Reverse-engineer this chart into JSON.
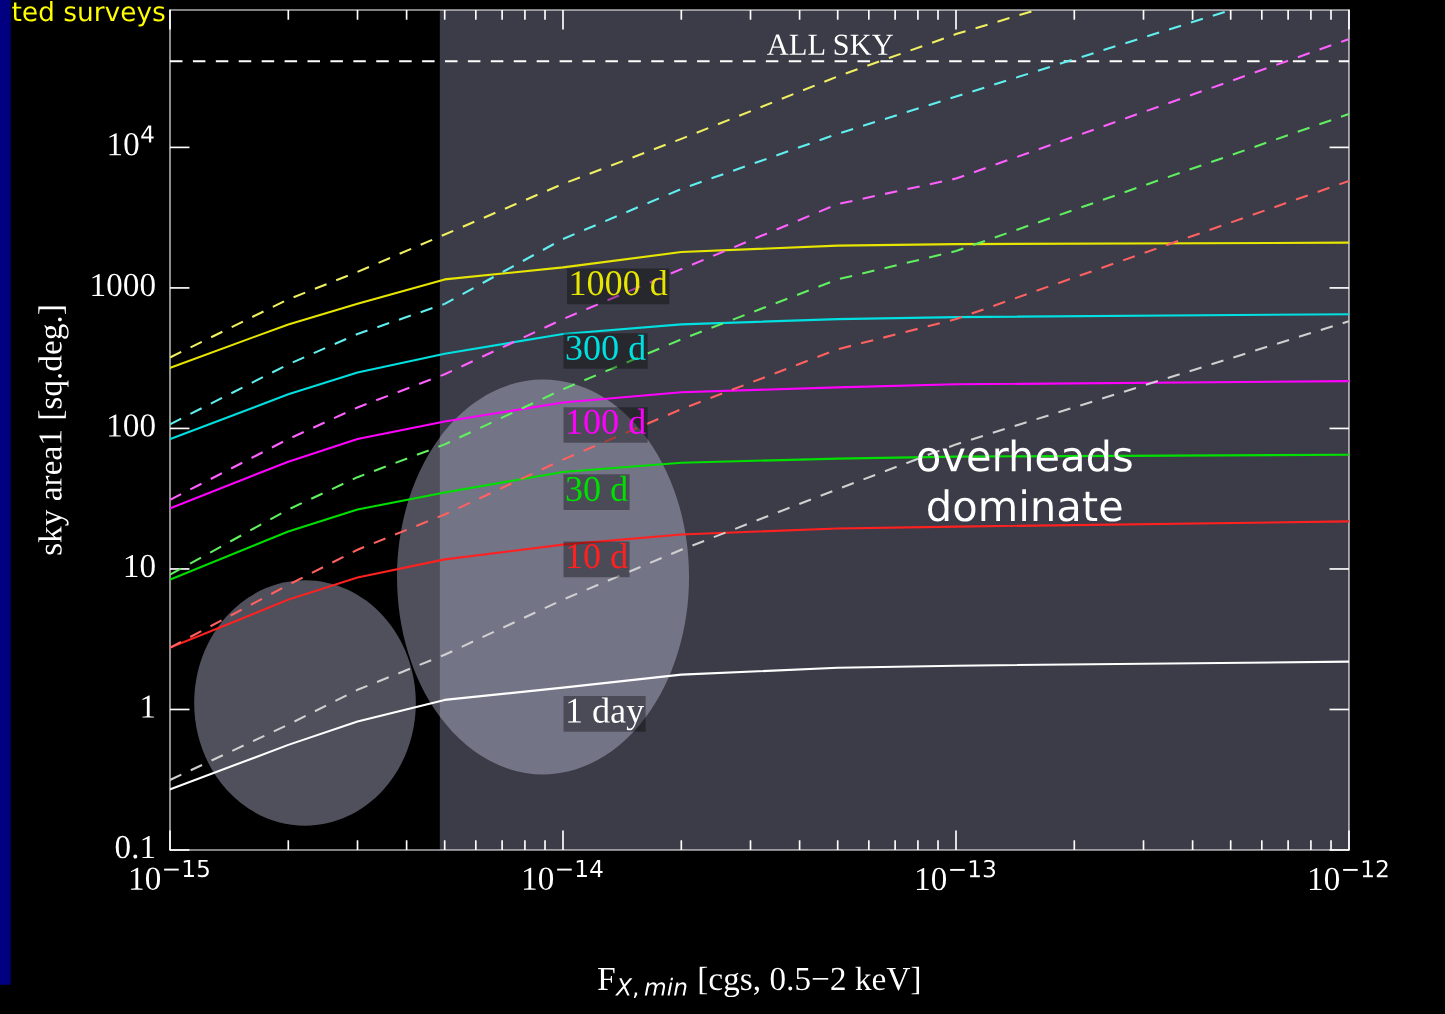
{
  "chart_data": {
    "type": "line",
    "title": "ted surveys",
    "xlabel": "F$_{X,min}$ [cgs, 0.5−2 keV]",
    "ylabel": "sky area1 [sq.deg.]",
    "log": "xy",
    "xlim": [
      1e-15,
      1e-12
    ],
    "ylim": [
      0.1,
      95000
    ],
    "xticks": [
      {
        "value": 1e-15,
        "label": "10$^{−15}$"
      },
      {
        "value": 1e-14,
        "label": "10$^{−14}$"
      },
      {
        "value": 1e-13,
        "label": "10$^{−13}$"
      },
      {
        "value": 1e-12,
        "label": "10$^{−12}$"
      }
    ],
    "yticks": [
      0.1,
      1,
      10,
      100,
      1000,
      {
        "value": 10000,
        "label": "10$^{4}$"
      }
    ],
    "grid": false,
    "legend": false,
    "series": [
      {
        "color": "#e6e600",
        "line_style": "solid",
        "x": [
          1e-15,
          2e-15,
          3e-15,
          5e-15,
          1e-14,
          2e-14,
          5e-14,
          1e-13,
          1e-12
        ],
        "values": [
          270,
          550,
          770,
          1150,
          1400,
          1800,
          2000,
          2050,
          2100
        ]
      },
      {
        "color": "#00e0e0",
        "line_style": "solid",
        "x": [
          1e-15,
          2e-15,
          3e-15,
          5e-15,
          1e-14,
          2e-14,
          5e-14,
          1e-13,
          1e-12
        ],
        "values": [
          84,
          175,
          250,
          340,
          470,
          550,
          600,
          620,
          650
        ]
      },
      {
        "color": "#ff00ff",
        "line_style": "solid",
        "x": [
          1e-15,
          2e-15,
          3e-15,
          5e-15,
          1e-14,
          2e-14,
          5e-14,
          1e-13,
          1e-12
        ],
        "values": [
          27,
          58,
          84,
          112,
          153,
          181,
          196,
          206,
          217
        ]
      },
      {
        "color": "#00e000",
        "line_style": "solid",
        "x": [
          1e-15,
          2e-15,
          3e-15,
          5e-15,
          1e-14,
          2e-14,
          5e-14,
          1e-13,
          1e-12
        ],
        "values": [
          8.4,
          18.5,
          26.5,
          35,
          49,
          57,
          61,
          63,
          65
        ]
      },
      {
        "color": "#ff2020",
        "line_style": "solid",
        "x": [
          1e-15,
          2e-15,
          3e-15,
          5e-15,
          1e-14,
          2e-14,
          5e-14,
          1e-13,
          1e-12
        ],
        "values": [
          2.75,
          6.05,
          8.7,
          11.7,
          14.9,
          17.6,
          19.4,
          20,
          21.8
        ]
      },
      {
        "color": "#ffffff",
        "line_style": "solid",
        "x": [
          1e-15,
          2e-15,
          3e-15,
          5e-15,
          1e-14,
          2e-14,
          5e-14,
          1e-13,
          1e-12
        ],
        "values": [
          0.27,
          0.56,
          0.82,
          1.17,
          1.43,
          1.77,
          1.98,
          2.05,
          2.19
        ]
      },
      {
        "color": "#f0f060",
        "line_style": "dashed",
        "x": [
          1e-15,
          2e-15,
          3e-15,
          5e-15,
          1e-14,
          2e-14,
          5e-14,
          1e-13,
          1.6e-13
        ],
        "values": [
          320,
          830,
          1300,
          2400,
          5500,
          11500,
          32000,
          64000,
          95000
        ]
      },
      {
        "color": "#60f0f0",
        "line_style": "dashed",
        "x": [
          1e-15,
          2e-15,
          3e-15,
          5e-15,
          1e-14,
          2e-14,
          5e-14,
          1e-13,
          5e-13
        ],
        "values": [
          107,
          286,
          470,
          770,
          2230,
          5060,
          12500,
          23000,
          95000
        ]
      },
      {
        "color": "#ff60ff",
        "line_style": "dashed",
        "x": [
          1e-15,
          2e-15,
          3e-15,
          5e-15,
          1e-14,
          2e-14,
          5e-14,
          1e-13,
          1e-12
        ],
        "values": [
          31,
          84,
          141,
          243,
          600,
          1360,
          3950,
          6000,
          59000
        ]
      },
      {
        "color": "#60f060",
        "line_style": "dashed",
        "x": [
          1e-15,
          2e-15,
          3e-15,
          5e-15,
          1e-14,
          2e-14,
          5e-14,
          1e-13,
          1e-12
        ],
        "values": [
          9.1,
          26.5,
          45,
          77,
          190,
          430,
          1150,
          1830,
          17300
        ]
      },
      {
        "color": "#ff6060",
        "line_style": "dashed",
        "x": [
          1e-15,
          2e-15,
          3e-15,
          5e-15,
          1e-14,
          2e-14,
          5e-14,
          1e-13,
          1e-12
        ],
        "values": [
          2.75,
          7.7,
          13.7,
          24.4,
          60,
          137,
          366,
          600,
          5770
        ]
      },
      {
        "color": "#d0d0d0",
        "line_style": "dashed",
        "x": [
          1e-15,
          2e-15,
          3e-15,
          5e-15,
          1e-14,
          2e-14,
          5e-14,
          1e-13,
          1e-12
        ],
        "values": [
          0.315,
          0.78,
          1.38,
          2.45,
          6.05,
          13.7,
          37,
          77,
          580
        ]
      }
    ],
    "ref_lines": [
      {
        "axis": "y",
        "value": 41000,
        "label": "ALL SKY",
        "color": "#ffffff",
        "line_style": "dashed"
      }
    ],
    "bands": [
      {
        "axis": "x",
        "from": 4.86e-15,
        "to": 1e-12,
        "color": "#3c3c48"
      }
    ],
    "annotations": [
      "1000 d",
      "300 d",
      "100 d",
      "30 d",
      "10 d",
      "1 day",
      "overheads\ndominate"
    ]
  }
}
